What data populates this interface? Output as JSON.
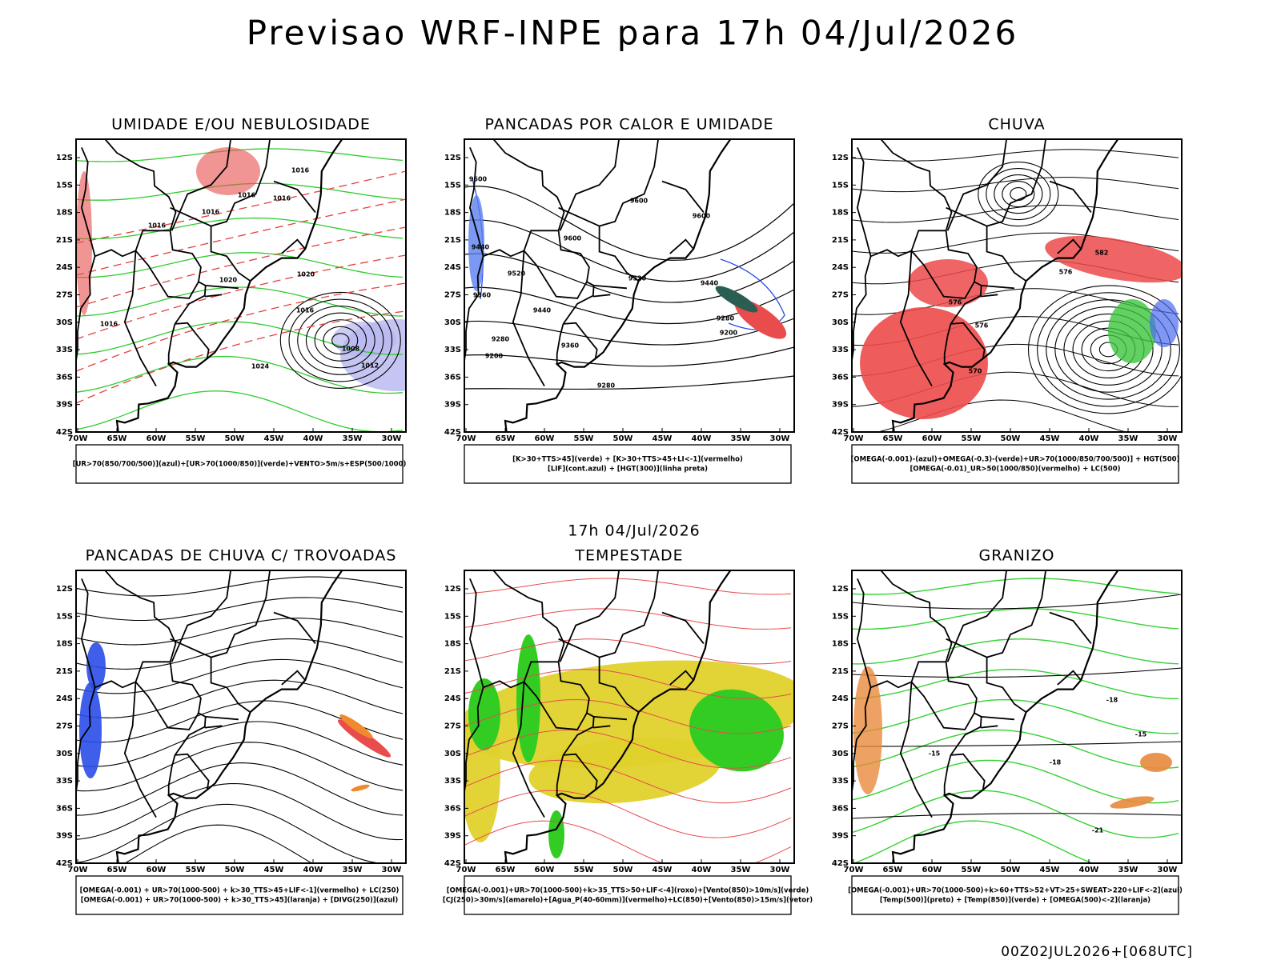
{
  "title": "Previsao WRF-INPE  para 17h 04/Jul/2026",
  "date": "17h 04/Jul/2026",
  "footer": "00Z02JUL2026+[068UTC]",
  "lat_ticks": [
    "12S",
    "15S",
    "18S",
    "21S",
    "24S",
    "27S",
    "30S",
    "33S",
    "36S",
    "39S",
    "42S"
  ],
  "lon_ticks": [
    "70W",
    "65W",
    "60W",
    "55W",
    "50W",
    "45W",
    "40W",
    "35W",
    "30W"
  ],
  "panels": [
    {
      "title": "UMIDADE E/OU NEBULOSIDADE",
      "legend": [
        "[UR>70(850/700/500)](azul)+[UR>70(1000/850)](verde)+VENTO>5m/s+ESP(500/1000)"
      ],
      "labels": [
        "1016",
        "1016",
        "1016",
        "1016",
        "1016",
        "1020",
        "1020",
        "1016",
        "1008",
        "1012",
        "1024",
        "1016"
      ]
    },
    {
      "title": "PANCADAS POR CALOR E UMIDADE",
      "legend": [
        "[K>30+TTS>45](verde) + [K>30+TTS>45+LI<-1](vermelho)",
        "[LIF](cont.azul) + [HGT(300)](linha preta)"
      ],
      "labels": [
        "9600",
        "9600",
        "9600",
        "9600",
        "9520",
        "9520",
        "9440",
        "9440",
        "9440",
        "9360",
        "9280",
        "9280",
        "9200",
        "9200",
        "9360",
        "9280"
      ]
    },
    {
      "title": "CHUVA",
      "legend": [
        "[OMEGA(-0.001)-(azul)+OMEGA(-0.3)-(verde)+UR>70(1000/850/700/500)] + HGT(500)",
        "[OMEGA(-0.01)_UR>50(1000/850)(vermelho) + LC(500)"
      ],
      "labels": [
        "582",
        "576",
        "576",
        "570",
        "576"
      ]
    },
    {
      "title": "PANCADAS DE CHUVA C/ TROVOADAS",
      "legend": [
        "[OMEGA(-0.001) + UR>70(1000-500) + k>30_TTS>45+LIF<-1](vermelho) + LC(250)",
        "[OMEGA(-0.001) + UR>70(1000-500) + k>30_TTS>45](laranja) + [DIVG(250)](azul)"
      ],
      "labels": []
    },
    {
      "title": "TEMPESTADE",
      "legend": [
        "[OMEGA(-0.001)+UR>70(1000-500)+k>35_TTS>50+LIF<-4](roxo)+[Vento(850)>10m/s](verde)",
        "[CJ(250)>30m/s](amarelo)+[Agua_P(40-60mm)](vermelho)+LC(850)+[Vento(850)>15m/s](vetor)"
      ],
      "labels": []
    },
    {
      "title": "GRANIZO",
      "legend": [
        "[OMEGA(-0.001)+UR>70(1000-500)+k>60+TTS>52+VT>25+SWEAT>220+LIF<-2](azul)",
        "[Temp(500)](preto) + [Temp(850)](verde) + [OMEGA(500)<-2](laranja)"
      ],
      "labels": [
        "-15",
        "-18",
        "-18",
        "-15",
        "-21"
      ]
    }
  ]
}
